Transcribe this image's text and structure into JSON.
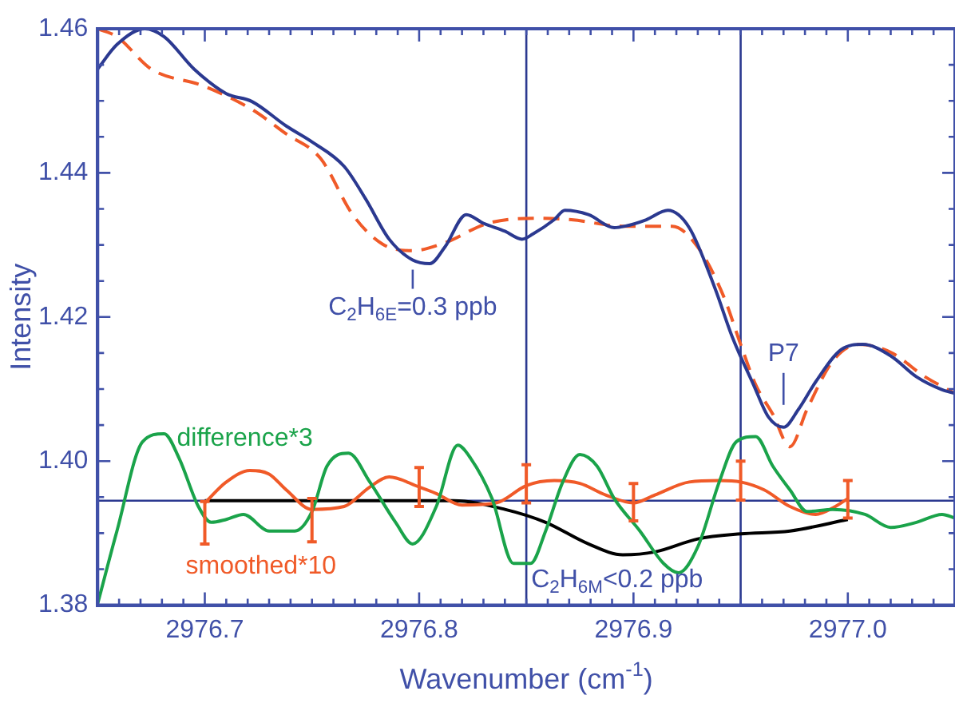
{
  "chart_data": {
    "type": "line",
    "xlabel": "Wavenumber (cm$^{-1}$)",
    "ylabel": "Intensity",
    "marker": "none",
    "xlim": [
      2976.65,
      2977.05
    ],
    "ylim": [
      1.38,
      1.46
    ],
    "xticks": [
      {
        "value": 2976.66,
        "label": null
      },
      {
        "value": 2976.67,
        "label": null
      },
      {
        "value": 2976.68,
        "label": null
      },
      {
        "value": 2976.69,
        "label": null
      },
      2976.7,
      {
        "value": 2976.71,
        "label": null
      },
      {
        "value": 2976.72,
        "label": null
      },
      {
        "value": 2976.73,
        "label": null
      },
      {
        "value": 2976.74,
        "label": null
      },
      {
        "value": 2976.75,
        "label": null
      },
      {
        "value": 2976.76,
        "label": null
      },
      {
        "value": 2976.77,
        "label": null
      },
      {
        "value": 2976.78,
        "label": null
      },
      {
        "value": 2976.79,
        "label": null
      },
      2976.8,
      {
        "value": 2976.81,
        "label": null
      },
      {
        "value": 2976.82,
        "label": null
      },
      {
        "value": 2976.83,
        "label": null
      },
      {
        "value": 2976.84,
        "label": null
      },
      {
        "value": 2976.85,
        "label": null
      },
      {
        "value": 2976.86,
        "label": null
      },
      {
        "value": 2976.87,
        "label": null
      },
      {
        "value": 2976.88,
        "label": null
      },
      {
        "value": 2976.89,
        "label": null
      },
      2976.9,
      {
        "value": 2976.91,
        "label": null
      },
      {
        "value": 2976.92,
        "label": null
      },
      {
        "value": 2976.93,
        "label": null
      },
      {
        "value": 2976.94,
        "label": null
      },
      {
        "value": 2976.95,
        "label": null
      },
      {
        "value": 2976.96,
        "label": null
      },
      {
        "value": 2976.97,
        "label": null
      },
      {
        "value": 2976.98,
        "label": null
      },
      {
        "value": 2976.99,
        "label": null
      },
      {
        "value": 2977,
        "label": "2977.0"
      },
      {
        "value": 2977.01,
        "label": null
      },
      {
        "value": 2977.02,
        "label": null
      },
      {
        "value": 2977.03,
        "label": null
      },
      {
        "value": 2977.04,
        "label": null
      }
    ],
    "yticks": [
      1.38,
      {
        "value": 1.385,
        "label": null
      },
      {
        "value": 1.39,
        "label": null
      },
      {
        "value": 1.395,
        "label": null
      },
      {
        "value": 1.4,
        "label": "1.40"
      },
      {
        "value": 1.405,
        "label": null
      },
      {
        "value": 1.41,
        "label": null
      },
      {
        "value": 1.415,
        "label": null
      },
      1.42,
      {
        "value": 1.425,
        "label": null
      },
      {
        "value": 1.43,
        "label": null
      },
      {
        "value": 1.435,
        "label": null
      },
      1.44,
      {
        "value": 1.445,
        "label": null
      },
      {
        "value": 1.45,
        "label": null
      },
      {
        "value": 1.455,
        "label": null
      },
      1.46
    ],
    "series": [
      {
        "color": "#2b3990",
        "x": [
          2976.65,
          2976.659,
          2976.672,
          2976.681,
          2976.695,
          2976.71,
          2976.722,
          2976.738,
          2976.75,
          2976.765,
          2976.775,
          2976.786,
          2976.797,
          2976.805,
          2976.812,
          2976.822,
          2976.83,
          2976.84,
          2976.848,
          2976.853,
          2976.863,
          2976.868,
          2976.879,
          2976.891,
          2976.896,
          2976.906,
          2976.916,
          2976.926,
          2976.938,
          2976.946,
          2976.956,
          2976.963,
          2976.97,
          2976.977,
          2976.985,
          2976.997,
          2977.007,
          2977.02,
          2977.032,
          2977.044,
          2977.05
        ],
        "values": [
          1.4544,
          1.4578,
          1.46,
          1.4589,
          1.4544,
          1.451,
          1.4499,
          1.4465,
          1.4443,
          1.4409,
          1.4364,
          1.4308,
          1.4279,
          1.4274,
          1.4297,
          1.4342,
          1.433,
          1.4319,
          1.4308,
          1.4315,
          1.4335,
          1.4348,
          1.4342,
          1.4324,
          1.4326,
          1.4335,
          1.4348,
          1.4324,
          1.424,
          1.4173,
          1.4106,
          1.4061,
          1.4047,
          1.4072,
          1.411,
          1.4155,
          1.4162,
          1.4146,
          1.4117,
          1.4099,
          1.4094
        ]
      },
      {
        "color": "#f05a28",
        "line_style": "dashed",
        "x": [
          2976.65,
          2976.659,
          2976.675,
          2976.699,
          2976.722,
          2976.738,
          2976.754,
          2976.769,
          2976.783,
          2976.797,
          2976.812,
          2976.832,
          2976.853,
          2976.871,
          2976.895,
          2976.918,
          2976.93,
          2976.942,
          2976.95,
          2976.957,
          2976.965,
          2976.973,
          2976.981,
          2976.993,
          2977.005,
          2977.02,
          2977.036,
          2977.05
        ],
        "values": [
          1.46,
          1.4589,
          1.4544,
          1.4521,
          1.4488,
          1.4454,
          1.442,
          1.4342,
          1.4301,
          1.4292,
          1.4303,
          1.433,
          1.4337,
          1.4335,
          1.4326,
          1.4326,
          1.4297,
          1.4229,
          1.4162,
          1.4106,
          1.4065,
          1.402,
          1.4072,
          1.4139,
          1.4162,
          1.4151,
          1.4117,
          1.4094
        ]
      },
      {
        "name": "difference*3",
        "color": "#1aa34a",
        "x": [
          2976.65,
          2976.659,
          2976.671,
          2976.681,
          2976.688,
          2976.697,
          2976.703,
          2976.71,
          2976.718,
          2976.73,
          2976.742,
          2976.75,
          2976.757,
          2976.767,
          2976.777,
          2976.789,
          2976.797,
          2976.808,
          2976.818,
          2976.824,
          2976.834,
          2976.844,
          2976.852,
          2976.859,
          2976.867,
          2976.875,
          2976.883,
          2976.891,
          2976.903,
          2976.914,
          2976.921,
          2976.93,
          2976.94,
          2976.948,
          2976.957,
          2976.965,
          2976.973,
          2976.981,
          2976.993,
          2977.008,
          2977.02,
          2977.032,
          2977.044,
          2977.05
        ],
        "values": [
          1.3802,
          1.3903,
          1.4027,
          1.4038,
          1.4004,
          1.3937,
          1.3915,
          1.3919,
          1.3926,
          1.3903,
          1.3903,
          1.393,
          1.3993,
          1.4011,
          1.3971,
          1.3915,
          1.3885,
          1.3937,
          1.4022,
          1.4004,
          1.3948,
          1.3858,
          1.3858,
          1.3903,
          1.3971,
          1.4009,
          1.3993,
          1.3948,
          1.3903,
          1.3858,
          1.3845,
          1.3881,
          1.3971,
          1.4027,
          1.4034,
          1.3993,
          1.396,
          1.393,
          1.3933,
          1.3926,
          1.3908,
          1.3915,
          1.3926,
          1.3921
        ]
      },
      {
        "name": "smoothed*10",
        "color": "#f05a28",
        "x": [
          2976.7,
          2976.71,
          2976.721,
          2976.73,
          2976.738,
          2976.75,
          2976.765,
          2976.777,
          2976.786,
          2976.8,
          2976.808,
          2976.82,
          2976.836,
          2976.85,
          2976.863,
          2976.875,
          2976.887,
          2976.9,
          2976.91,
          2976.926,
          2976.94,
          2976.95,
          2976.961,
          2976.973,
          2976.985,
          2976.993,
          2977
        ],
        "values": [
          1.3942,
          1.3971,
          1.3987,
          1.3982,
          1.396,
          1.3933,
          1.3937,
          1.3964,
          1.3978,
          1.3964,
          1.3955,
          1.3939,
          1.3942,
          1.3966,
          1.3973,
          1.3969,
          1.3953,
          1.3942,
          1.3953,
          1.3971,
          1.3973,
          1.3971,
          1.396,
          1.3937,
          1.3926,
          1.3935,
          1.3948
        ],
        "errors": [
          [
            1.3885,
            1.3944
          ],
          null,
          null,
          null,
          null,
          [
            1.3888,
            1.3948
          ],
          null,
          null,
          null,
          [
            1.3937,
            1.3991
          ],
          null,
          null,
          null,
          [
            1.3942,
            1.3995
          ],
          null,
          null,
          null,
          [
            1.3917,
            1.3969
          ],
          null,
          null,
          null,
          [
            1.3946,
            1.4
          ],
          null,
          null,
          null,
          null,
          [
            1.3921,
            1.3973
          ]
        ]
      },
      {
        "color": "#000000",
        "x": [
          2976.7,
          2976.816,
          2976.84,
          2976.859,
          2976.879,
          2976.895,
          2976.91,
          2976.93,
          2976.95,
          2976.973,
          2977
        ],
        "values": [
          1.3945,
          1.3945,
          1.3933,
          1.3915,
          1.3885,
          1.387,
          1.3874,
          1.3892,
          1.3899,
          1.3903,
          1.3919
        ]
      }
    ],
    "ref_lines": [
      {
        "axis": "x",
        "value": 2976.85,
        "color": "#2b3990"
      },
      {
        "axis": "x",
        "value": 2976.95,
        "color": "#2b3990"
      },
      {
        "axis": "y",
        "value": 1.3945,
        "color": "#2b3990"
      }
    ],
    "annotations": [
      {
        "text": "C$_{2}$H$_{6E}$=0.3 ppb",
        "x": 2976.797,
        "y": 1.4279
      },
      {
        "text": "P7",
        "x": 2976.97,
        "y": 1.4047
      },
      {
        "text": "C$_{2}$H$_{6M}$<0.2 ppb",
        "x": 2976.85,
        "y": 1.3835
      }
    ]
  }
}
